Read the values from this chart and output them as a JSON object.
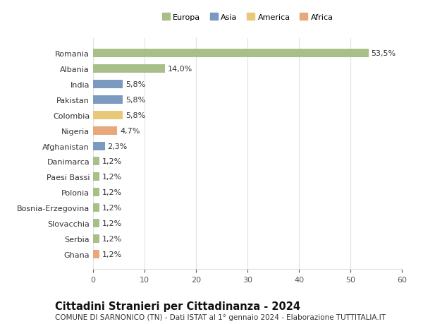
{
  "categories": [
    "Romania",
    "Albania",
    "India",
    "Pakistan",
    "Colombia",
    "Nigeria",
    "Afghanistan",
    "Danimarca",
    "Paesi Bassi",
    "Polonia",
    "Bosnia-Erzegovina",
    "Slovacchia",
    "Serbia",
    "Ghana"
  ],
  "values": [
    53.5,
    14.0,
    5.8,
    5.8,
    5.8,
    4.7,
    2.3,
    1.2,
    1.2,
    1.2,
    1.2,
    1.2,
    1.2,
    1.2
  ],
  "labels": [
    "53,5%",
    "14,0%",
    "5,8%",
    "5,8%",
    "5,8%",
    "4,7%",
    "2,3%",
    "1,2%",
    "1,2%",
    "1,2%",
    "1,2%",
    "1,2%",
    "1,2%",
    "1,2%"
  ],
  "colors": [
    "#a8bf8a",
    "#a8bf8a",
    "#7a9abf",
    "#7a9abf",
    "#e8c97a",
    "#e8a87a",
    "#7a9abf",
    "#a8bf8a",
    "#a8bf8a",
    "#a8bf8a",
    "#a8bf8a",
    "#a8bf8a",
    "#a8bf8a",
    "#e8a87a"
  ],
  "legend_labels": [
    "Europa",
    "Asia",
    "America",
    "Africa"
  ],
  "legend_colors": [
    "#a8bf8a",
    "#7a9abf",
    "#e8c97a",
    "#e8a87a"
  ],
  "title": "Cittadini Stranieri per Cittadinanza - 2024",
  "subtitle": "COMUNE DI SARNONICO (TN) - Dati ISTAT al 1° gennaio 2024 - Elaborazione TUTTITALIA.IT",
  "xlim": [
    0,
    60
  ],
  "xticks": [
    0,
    10,
    20,
    30,
    40,
    50,
    60
  ],
  "bg_color": "#ffffff",
  "grid_color": "#e0e0e0",
  "bar_height": 0.55,
  "label_fontsize": 8.0,
  "tick_fontsize": 8.0,
  "title_fontsize": 10.5,
  "subtitle_fontsize": 7.5
}
